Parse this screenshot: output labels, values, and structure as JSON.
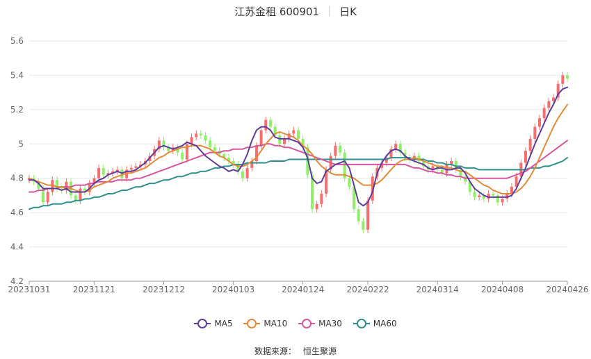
{
  "chart_data": {
    "type": "candlestick",
    "title": "江苏金租 600901",
    "subtitle": "日K",
    "ylim": [
      4.2,
      5.6
    ],
    "yticks": [
      4.2,
      4.4,
      4.6,
      4.8,
      5,
      5.2,
      5.4,
      5.6
    ],
    "ytick_labels": [
      "4.2",
      "4.4",
      "4.6",
      "4.8",
      "5",
      "5.2",
      "5.4",
      "5.6"
    ],
    "xticks": [
      "20231031",
      "20231121",
      "20231212",
      "20240103",
      "20240124",
      "20240222",
      "20240314",
      "20240408",
      "20240426"
    ],
    "xtick_indices": [
      0,
      14,
      29,
      44,
      59,
      73,
      88,
      102,
      116
    ],
    "n_points": 117,
    "grid": true,
    "legend_position": "bottom",
    "colors": {
      "up": "#fa6d6d",
      "down": "#8ff068",
      "ma5": "#5c3c9c",
      "ma10": "#e38a37",
      "ma30": "#d6559e",
      "ma60": "#2e8f8f",
      "grid": "#e6e6e6"
    },
    "close": [
      4.8,
      4.78,
      4.74,
      4.66,
      4.72,
      4.79,
      4.74,
      4.73,
      4.78,
      4.7,
      4.67,
      4.74,
      4.72,
      4.77,
      4.8,
      4.86,
      4.82,
      4.83,
      4.84,
      4.85,
      4.8,
      4.85,
      4.86,
      4.87,
      4.88,
      4.9,
      4.93,
      4.97,
      5.02,
      4.98,
      4.96,
      4.98,
      4.95,
      4.91,
      5.0,
      5.04,
      5.06,
      5.05,
      5.02,
      4.98,
      4.96,
      4.94,
      4.92,
      4.9,
      4.88,
      4.84,
      4.8,
      4.86,
      4.9,
      4.99,
      5.08,
      5.14,
      5.1,
      5.05,
      5.0,
      5.03,
      5.06,
      5.08,
      5.03,
      4.98,
      4.82,
      4.62,
      4.65,
      4.71,
      4.85,
      4.93,
      4.99,
      4.95,
      4.8,
      4.75,
      4.62,
      4.55,
      4.5,
      4.67,
      4.81,
      4.86,
      4.89,
      4.92,
      4.97,
      5.0,
      4.95,
      4.92,
      4.91,
      4.93,
      4.9,
      4.87,
      4.85,
      4.87,
      4.85,
      4.83,
      4.88,
      4.9,
      4.85,
      4.81,
      4.78,
      4.72,
      4.69,
      4.7,
      4.68,
      4.71,
      4.7,
      4.66,
      4.68,
      4.71,
      4.75,
      4.81,
      4.89,
      4.96,
      5.03,
      5.1,
      5.15,
      5.21,
      5.25,
      5.27,
      5.35,
      5.4,
      5.38
    ],
    "ma5": [
      4.79,
      4.79,
      4.77,
      4.74,
      4.74,
      4.74,
      4.74,
      4.73,
      4.74,
      4.72,
      4.72,
      4.72,
      4.72,
      4.74,
      4.77,
      4.79,
      4.8,
      4.82,
      4.83,
      4.84,
      4.83,
      4.84,
      4.84,
      4.85,
      4.87,
      4.89,
      4.92,
      4.95,
      4.98,
      4.99,
      4.98,
      4.97,
      4.98,
      4.99,
      5.01,
      5.0,
      4.99,
      4.96,
      4.93,
      4.91,
      4.89,
      4.87,
      4.86,
      4.84,
      4.85,
      4.84,
      4.88,
      4.94,
      5.02,
      5.08,
      5.1,
      5.1,
      5.08,
      5.04,
      5.03,
      5.03,
      5.03,
      5.02,
      5.01,
      4.98,
      4.92,
      4.8,
      4.77,
      4.78,
      4.84,
      4.86,
      4.88,
      4.89,
      4.9,
      4.86,
      4.76,
      4.66,
      4.64,
      4.66,
      4.72,
      4.83,
      4.89,
      4.93,
      4.96,
      4.97,
      4.96,
      4.93,
      4.91,
      4.9,
      4.89,
      4.88,
      4.86,
      4.85,
      4.86,
      4.86,
      4.85,
      4.85,
      4.86,
      4.86,
      4.83,
      4.78,
      4.74,
      4.72,
      4.7,
      4.69,
      4.69,
      4.69,
      4.69,
      4.69,
      4.7,
      4.74,
      4.8,
      4.86,
      4.93,
      5.0,
      5.06,
      5.12,
      5.18,
      5.23,
      5.29,
      5.32,
      5.33
    ],
    "ma10": [
      4.8,
      4.79,
      4.78,
      4.77,
      4.76,
      4.76,
      4.75,
      4.75,
      4.74,
      4.74,
      4.73,
      4.72,
      4.72,
      4.73,
      4.75,
      4.76,
      4.77,
      4.78,
      4.8,
      4.81,
      4.82,
      4.83,
      4.83,
      4.84,
      4.85,
      4.86,
      4.88,
      4.9,
      4.92,
      4.93,
      4.95,
      4.96,
      4.97,
      4.98,
      4.98,
      4.99,
      4.99,
      4.99,
      4.98,
      4.97,
      4.95,
      4.93,
      4.92,
      4.9,
      4.88,
      4.87,
      4.87,
      4.88,
      4.9,
      4.92,
      4.96,
      5.0,
      5.03,
      5.06,
      5.07,
      5.06,
      5.05,
      5.04,
      5.02,
      4.99,
      4.97,
      4.94,
      4.9,
      4.87,
      4.85,
      4.83,
      4.82,
      4.82,
      4.82,
      4.81,
      4.8,
      4.78,
      4.76,
      4.76,
      4.76,
      4.77,
      4.79,
      4.82,
      4.85,
      4.88,
      4.9,
      4.91,
      4.91,
      4.92,
      4.91,
      4.9,
      4.89,
      4.88,
      4.87,
      4.87,
      4.86,
      4.86,
      4.85,
      4.84,
      4.84,
      4.82,
      4.8,
      4.78,
      4.76,
      4.75,
      4.73,
      4.72,
      4.71,
      4.71,
      4.71,
      4.72,
      4.74,
      4.77,
      4.81,
      4.86,
      4.92,
      4.98,
      5.04,
      5.1,
      5.15,
      5.19,
      5.23
    ],
    "ma30": [
      4.72,
      4.72,
      4.73,
      4.73,
      4.74,
      4.74,
      4.74,
      4.75,
      4.75,
      4.75,
      4.76,
      4.76,
      4.76,
      4.77,
      4.77,
      4.78,
      4.78,
      4.78,
      4.78,
      4.79,
      4.79,
      4.79,
      4.79,
      4.8,
      4.8,
      4.81,
      4.82,
      4.83,
      4.84,
      4.85,
      4.86,
      4.87,
      4.88,
      4.89,
      4.9,
      4.91,
      4.92,
      4.93,
      4.94,
      4.95,
      4.95,
      4.95,
      4.96,
      4.96,
      4.97,
      4.97,
      4.97,
      4.98,
      4.98,
      4.99,
      4.99,
      5.0,
      5.0,
      4.99,
      4.99,
      4.98,
      4.98,
      4.97,
      4.96,
      4.95,
      4.94,
      4.93,
      4.92,
      4.91,
      4.9,
      4.89,
      4.88,
      4.88,
      4.88,
      4.88,
      4.88,
      4.88,
      4.88,
      4.88,
      4.88,
      4.88,
      4.88,
      4.88,
      4.88,
      4.88,
      4.88,
      4.88,
      4.87,
      4.86,
      4.86,
      4.85,
      4.84,
      4.84,
      4.83,
      4.83,
      4.82,
      4.82,
      4.81,
      4.81,
      4.8,
      4.8,
      4.8,
      4.8,
      4.8,
      4.8,
      4.8,
      4.8,
      4.8,
      4.8,
      4.81,
      4.82,
      4.83,
      4.84,
      4.86,
      4.88,
      4.9,
      4.92,
      4.94,
      4.96,
      4.98,
      5.0,
      5.02
    ],
    "ma60": [
      4.62,
      4.63,
      4.63,
      4.64,
      4.64,
      4.65,
      4.65,
      4.65,
      4.66,
      4.66,
      4.67,
      4.67,
      4.68,
      4.68,
      4.69,
      4.69,
      4.7,
      4.71,
      4.71,
      4.72,
      4.73,
      4.73,
      4.74,
      4.75,
      4.75,
      4.76,
      4.77,
      4.77,
      4.78,
      4.79,
      4.79,
      4.8,
      4.81,
      4.81,
      4.82,
      4.83,
      4.83,
      4.84,
      4.84,
      4.85,
      4.86,
      4.86,
      4.87,
      4.87,
      4.88,
      4.88,
      4.88,
      4.89,
      4.89,
      4.89,
      4.89,
      4.89,
      4.9,
      4.9,
      4.9,
      4.9,
      4.91,
      4.91,
      4.91,
      4.91,
      4.91,
      4.91,
      4.91,
      4.91,
      4.91,
      4.91,
      4.91,
      4.91,
      4.91,
      4.91,
      4.91,
      4.91,
      4.91,
      4.91,
      4.91,
      4.91,
      4.91,
      4.91,
      4.92,
      4.92,
      4.92,
      4.92,
      4.92,
      4.91,
      4.91,
      4.91,
      4.9,
      4.9,
      4.89,
      4.89,
      4.88,
      4.88,
      4.87,
      4.87,
      4.86,
      4.86,
      4.86,
      4.85,
      4.85,
      4.85,
      4.85,
      4.85,
      4.85,
      4.85,
      4.85,
      4.85,
      4.85,
      4.85,
      4.86,
      4.86,
      4.86,
      4.87,
      4.87,
      4.88,
      4.89,
      4.9,
      4.92
    ]
  },
  "legend": [
    {
      "key": "ma5",
      "label": "MA5",
      "color": "#5c3c9c"
    },
    {
      "key": "ma10",
      "label": "MA10",
      "color": "#e38a37"
    },
    {
      "key": "ma30",
      "label": "MA30",
      "color": "#d6559e"
    },
    {
      "key": "ma60",
      "label": "MA60",
      "color": "#2e8f8f"
    }
  ],
  "source": {
    "label": "数据来源：",
    "value": "恒生聚源"
  }
}
